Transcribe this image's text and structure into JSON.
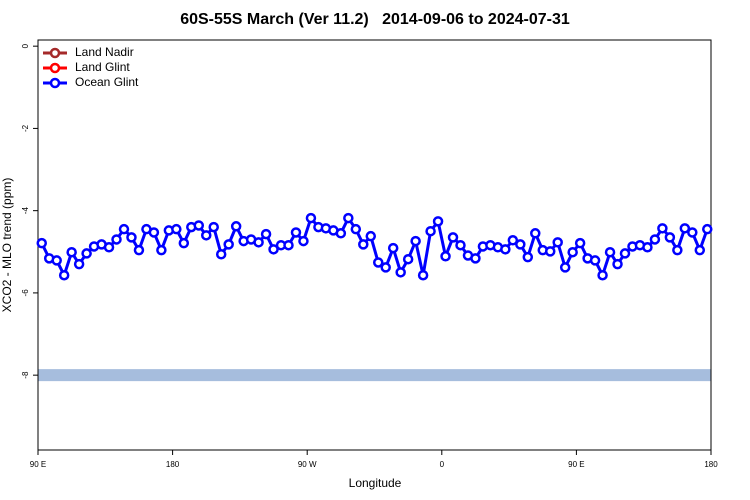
{
  "chart_data": {
    "type": "line",
    "title": "60S-55S March (Ver 11.2)   2014-09-06 to 2024-07-31",
    "x_label": "Longitude",
    "y_label": "XCO2 - MLO trend (ppm)",
    "xlim": [
      90,
      540
    ],
    "ylim": [
      -9.82,
      0.15
    ],
    "xticks": [
      {
        "value": 90,
        "label": "90 E"
      },
      {
        "value": 180,
        "label": "180"
      },
      {
        "value": 270,
        "label": "90 W"
      },
      {
        "value": 360,
        "label": "0"
      },
      {
        "value": 450,
        "label": "90 E"
      },
      {
        "value": 540,
        "label": "180"
      }
    ],
    "yticks": [
      0,
      -2,
      -4,
      -6,
      -8
    ],
    "legend": "top-left",
    "reference_band": {
      "value": -8,
      "color": "#a6bddd"
    },
    "series": [
      {
        "name": "Land Nadir",
        "color": "#a52a2a",
        "x": [],
        "values": []
      },
      {
        "name": "Land Glint",
        "color": "#ff0000",
        "x": [],
        "values": []
      },
      {
        "name": "Ocean Glint",
        "color": "#0000ff",
        "x": [
          92.5,
          97.5,
          102.5,
          107.5,
          112.5,
          117.5,
          122.5,
          127.5,
          132.5,
          137.5,
          142.5,
          147.5,
          152.5,
          157.5,
          162.5,
          167.5,
          172.5,
          177.5,
          182.5,
          187.5,
          192.5,
          197.5,
          202.5,
          207.5,
          212.5,
          217.5,
          222.5,
          227.5,
          232.5,
          237.5,
          242.5,
          247.5,
          252.5,
          257.5,
          262.5,
          267.5,
          272.5,
          277.5,
          282.5,
          287.5,
          292.5,
          297.5,
          302.5,
          307.5,
          312.5,
          317.5,
          322.5,
          327.5,
          332.5,
          337.5,
          342.5,
          347.5,
          352.5,
          357.5,
          362.5,
          367.5,
          372.5,
          377.5,
          382.5,
          387.5,
          392.5,
          397.5,
          402.5,
          407.5,
          412.5,
          417.5,
          422.5,
          427.5,
          432.5,
          437.5,
          442.5,
          447.5,
          452.5,
          457.5,
          462.5,
          467.5,
          472.5,
          477.5,
          482.5,
          487.5,
          492.5,
          497.5,
          502.5,
          507.5,
          512.5,
          517.5,
          522.5,
          527.5,
          532.5,
          537.5
        ],
        "values": [
          -4.79,
          -5.16,
          -5.21,
          -5.57,
          -5.01,
          -5.3,
          -5.04,
          -4.87,
          -4.82,
          -4.89,
          -4.7,
          -4.45,
          -4.65,
          -4.96,
          -4.45,
          -4.53,
          -4.96,
          -4.48,
          -4.45,
          -4.79,
          -4.4,
          -4.36,
          -4.6,
          -4.4,
          -5.06,
          -4.82,
          -4.38,
          -4.74,
          -4.7,
          -4.77,
          -4.57,
          -4.94,
          -4.84,
          -4.84,
          -4.53,
          -4.74,
          -4.18,
          -4.4,
          -4.43,
          -4.48,
          -4.55,
          -4.18,
          -4.45,
          -4.82,
          -4.62,
          -5.26,
          -5.38,
          -4.91,
          -5.5,
          -5.18,
          -4.74,
          -5.57,
          -4.5,
          -4.26,
          -5.11,
          -4.65,
          -4.84,
          -5.09,
          -5.16,
          -4.87,
          -4.84,
          -4.89,
          -4.94,
          -4.72,
          -4.82,
          -5.13,
          -4.55,
          -4.96,
          -4.99,
          -4.77,
          -5.38,
          -5.01,
          -4.79,
          -5.16,
          -5.21,
          -5.57,
          -5.01,
          -5.3,
          -5.04,
          -4.87,
          -4.84,
          -4.89,
          -4.7,
          -4.43,
          -4.65,
          -4.96,
          -4.43,
          -4.53,
          -4.96,
          -4.45
        ]
      }
    ]
  }
}
